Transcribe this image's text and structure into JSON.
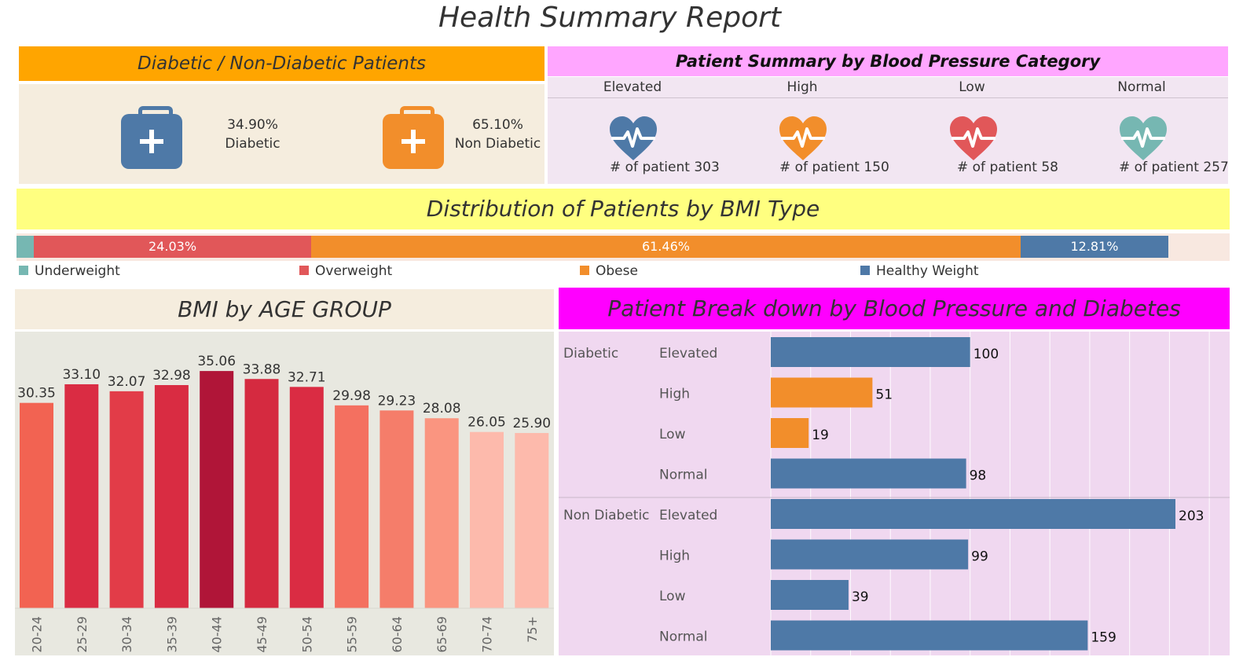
{
  "page": {
    "title": "Health Summary Report"
  },
  "diabetic_panel": {
    "title": "Diabetic / Non-Diabetic Patients",
    "diabetic": {
      "pct": "34.90%",
      "label": "Diabetic",
      "icon": "medical-kit-icon",
      "color": "#4E79A7"
    },
    "non_diabetic": {
      "pct": "65.10%",
      "label": "Non Diabetic",
      "icon": "medical-kit-icon",
      "color": "#F28E2B"
    }
  },
  "bp_summary": {
    "title": "Patient Summary by Blood Pressure Category",
    "categories": [
      {
        "name": "Elevated",
        "count_text": "# of patient 303",
        "color": "#4E79A7",
        "icon": "heartbeat-icon"
      },
      {
        "name": "High",
        "count_text": "# of patient 150",
        "color": "#F28E2B",
        "icon": "heartbeat-icon"
      },
      {
        "name": "Low",
        "count_text": "# of patient 58",
        "color": "#E15759",
        "icon": "heartbeat-icon"
      },
      {
        "name": "Normal",
        "count_text": "# of patient 257",
        "color": "#76B7B2",
        "icon": "heartbeat-icon"
      }
    ]
  },
  "bmi_distribution": {
    "title": "Distribution of Patients by BMI Type",
    "segments": [
      {
        "name": "Underweight",
        "pct": 1.5,
        "label": "",
        "color": "#76B7B2"
      },
      {
        "name": "Overweight",
        "pct": 24.03,
        "label": "24.03%",
        "color": "#E15759"
      },
      {
        "name": "Obese",
        "pct": 61.46,
        "label": "61.46%",
        "color": "#F28E2B"
      },
      {
        "name": "Healthy Weight",
        "pct": 12.81,
        "label": "12.81%",
        "color": "#4E79A7"
      }
    ]
  },
  "chart_data": [
    {
      "type": "bar",
      "title": "BMI by AGE GROUP",
      "categories": [
        "20-24",
        "25-29",
        "30-34",
        "35-39",
        "40-44",
        "45-49",
        "50-54",
        "55-59",
        "60-64",
        "65-69",
        "70-74",
        "75+"
      ],
      "values": [
        30.35,
        33.1,
        32.07,
        32.98,
        35.06,
        33.88,
        32.71,
        29.98,
        29.23,
        28.08,
        26.05,
        25.9
      ],
      "labels": [
        "30.35",
        "33.10",
        "32.07",
        "32.98",
        "35.06",
        "33.88",
        "32.71",
        "29.98",
        "29.23",
        "28.08",
        "26.05",
        "25.90"
      ],
      "colors": [
        "#F26352",
        "#DA2C43",
        "#E23C48",
        "#D92C42",
        "#B01538",
        "#D52A40",
        "#DA2C43",
        "#F47060",
        "#F57D6A",
        "#FA9580",
        "#FDBAAC",
        "#FDBAAC"
      ],
      "ylim": [
        0,
        36
      ]
    },
    {
      "type": "bar",
      "orientation": "horizontal",
      "title": "Patient Break down by Blood Pressure and Diabetes",
      "groups": [
        {
          "name": "Diabetic",
          "rows": [
            {
              "category": "Elevated",
              "value": 100,
              "color": "#4E79A7"
            },
            {
              "category": "High",
              "value": 51,
              "color": "#F28E2B"
            },
            {
              "category": "Low",
              "value": 19,
              "color": "#F28E2B"
            },
            {
              "category": "Normal",
              "value": 98,
              "color": "#4E79A7"
            }
          ]
        },
        {
          "name": "Non Diabetic",
          "rows": [
            {
              "category": "Elevated",
              "value": 203,
              "color": "#4E79A7"
            },
            {
              "category": "High",
              "value": 99,
              "color": "#4E79A7"
            },
            {
              "category": "Low",
              "value": 39,
              "color": "#4E79A7"
            },
            {
              "category": "Normal",
              "value": 159,
              "color": "#4E79A7"
            }
          ]
        }
      ],
      "xlim": [
        0,
        230
      ]
    }
  ]
}
